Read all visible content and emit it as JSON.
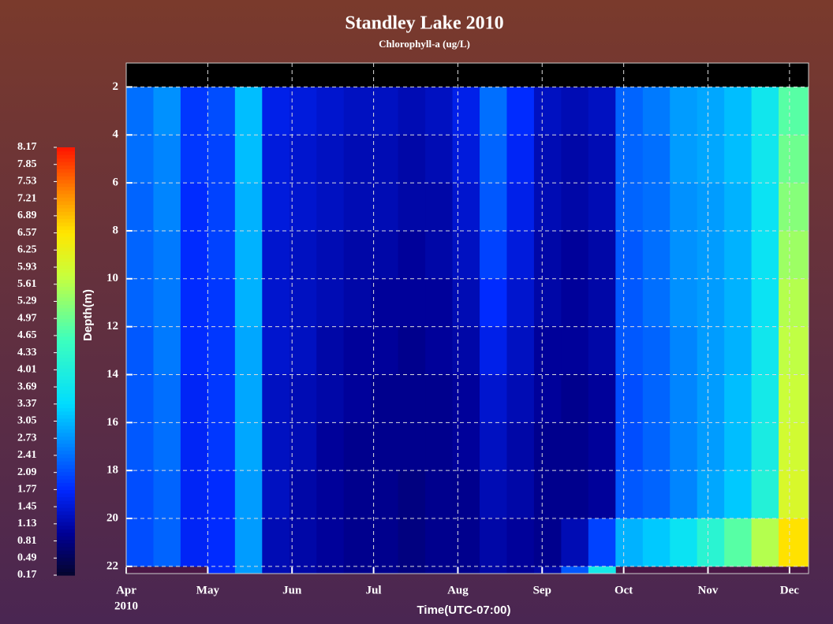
{
  "chart_data": {
    "type": "heatmap",
    "title": "Standley Lake 2010",
    "subtitle": "Chlorophyll-a (ug/L)",
    "x_label": "Time(UTC-07:00)",
    "y_label": "Depth(m)",
    "xlim": [
      0,
      251
    ],
    "xticks": [
      {
        "value": 0,
        "label": "Apr"
      },
      {
        "value": 30,
        "label": "May"
      },
      {
        "value": 61,
        "label": "Jun"
      },
      {
        "value": 91,
        "label": "Jul"
      },
      {
        "value": 122,
        "label": "Aug"
      },
      {
        "value": 153,
        "label": "Sep"
      },
      {
        "value": 183,
        "label": "Oct"
      },
      {
        "value": 214,
        "label": "Nov"
      },
      {
        "value": 244,
        "label": "Dec"
      }
    ],
    "x_tick_sublabel": "2010",
    "ylim": [
      1,
      22.3
    ],
    "y_inverted": true,
    "yticks": [
      2,
      4,
      6,
      8,
      10,
      12,
      14,
      16,
      18,
      20,
      22
    ],
    "grid": true,
    "x_edges": [
      0,
      10,
      20,
      30,
      40,
      50,
      60,
      70,
      80,
      90,
      100,
      110,
      120,
      130,
      140,
      150,
      160,
      170,
      180,
      190,
      200,
      210,
      220,
      230,
      240,
      251
    ],
    "y_edges": [
      2,
      4,
      6,
      8,
      10,
      12,
      14,
      16,
      18,
      20,
      22,
      22.3
    ],
    "z": [
      [
        2.4,
        2.7,
        1.9,
        2.1,
        3.1,
        1.6,
        1.5,
        1.4,
        1.3,
        1.3,
        1.2,
        1.3,
        1.6,
        2.4,
        1.8,
        1.3,
        1.2,
        1.3,
        2.3,
        2.5,
        2.8,
        2.9,
        3.1,
        3.7,
        4.8
      ],
      [
        2.4,
        2.6,
        1.9,
        2.0,
        3.1,
        1.5,
        1.4,
        1.3,
        1.2,
        1.2,
        1.1,
        1.2,
        1.5,
        2.3,
        1.7,
        1.2,
        1.1,
        1.2,
        2.3,
        2.4,
        2.8,
        2.9,
        3.1,
        3.7,
        5.0
      ],
      [
        2.3,
        2.6,
        1.8,
        2.0,
        3.0,
        1.5,
        1.4,
        1.3,
        1.2,
        1.2,
        1.1,
        1.1,
        1.4,
        2.2,
        1.6,
        1.2,
        1.1,
        1.2,
        2.3,
        2.4,
        2.7,
        2.8,
        3.0,
        3.6,
        5.2
      ],
      [
        2.3,
        2.5,
        1.8,
        2.0,
        3.0,
        1.4,
        1.3,
        1.2,
        1.1,
        1.1,
        1.0,
        1.1,
        1.3,
        2.0,
        1.5,
        1.1,
        1.0,
        1.1,
        2.2,
        2.4,
        2.7,
        2.8,
        3.0,
        3.6,
        5.4
      ],
      [
        2.3,
        2.5,
        1.8,
        1.9,
        3.0,
        1.4,
        1.3,
        1.2,
        1.1,
        1.0,
        1.0,
        1.0,
        1.2,
        1.8,
        1.4,
        1.1,
        1.0,
        1.1,
        2.2,
        2.4,
        2.7,
        2.8,
        3.0,
        3.6,
        5.6
      ],
      [
        2.2,
        2.5,
        1.8,
        1.9,
        2.9,
        1.4,
        1.3,
        1.1,
        1.0,
        1.0,
        0.9,
        1.0,
        1.1,
        1.6,
        1.3,
        1.0,
        1.0,
        1.1,
        2.2,
        2.3,
        2.6,
        2.8,
        3.0,
        3.7,
        5.7
      ],
      [
        2.2,
        2.4,
        1.7,
        1.9,
        2.9,
        1.3,
        1.2,
        1.1,
        1.0,
        0.9,
        0.9,
        0.9,
        1.0,
        1.4,
        1.2,
        1.0,
        0.9,
        1.0,
        2.1,
        2.3,
        2.6,
        2.8,
        3.1,
        3.8,
        5.8
      ],
      [
        2.2,
        2.4,
        1.7,
        1.9,
        2.9,
        1.3,
        1.2,
        1.0,
        0.9,
        0.9,
        0.9,
        0.9,
        1.0,
        1.3,
        1.1,
        0.9,
        0.9,
        1.0,
        2.1,
        2.3,
        2.6,
        2.8,
        3.1,
        3.9,
        5.9
      ],
      [
        2.1,
        2.3,
        1.7,
        1.8,
        2.8,
        1.3,
        1.1,
        1.0,
        0.9,
        0.9,
        0.8,
        0.9,
        0.9,
        1.2,
        1.1,
        0.9,
        0.9,
        1.0,
        2.2,
        2.3,
        2.6,
        2.9,
        3.2,
        4.1,
        6.0
      ],
      [
        2.1,
        2.3,
        1.7,
        1.8,
        2.8,
        1.2,
        1.1,
        1.0,
        0.9,
        0.9,
        0.8,
        0.9,
        0.9,
        1.1,
        1.0,
        0.9,
        1.2,
        2.0,
        3.0,
        3.2,
        3.6,
        4.2,
        4.8,
        5.6,
        6.6
      ],
      [
        null,
        null,
        null,
        1.8,
        2.8,
        1.2,
        1.1,
        1.0,
        0.9,
        0.9,
        0.8,
        0.9,
        0.9,
        1.1,
        1.0,
        1.1,
        2.2,
        3.8,
        null,
        null,
        null,
        null,
        null,
        null,
        null
      ]
    ],
    "zlim": [
      0.17,
      8.17
    ],
    "zticks": [
      0.17,
      0.49,
      0.81,
      1.13,
      1.45,
      1.77,
      2.09,
      2.41,
      2.73,
      3.05,
      3.37,
      3.69,
      4.01,
      4.33,
      4.65,
      4.97,
      5.29,
      5.61,
      5.93,
      6.25,
      6.57,
      6.89,
      7.21,
      7.53,
      7.85,
      8.17
    ]
  }
}
